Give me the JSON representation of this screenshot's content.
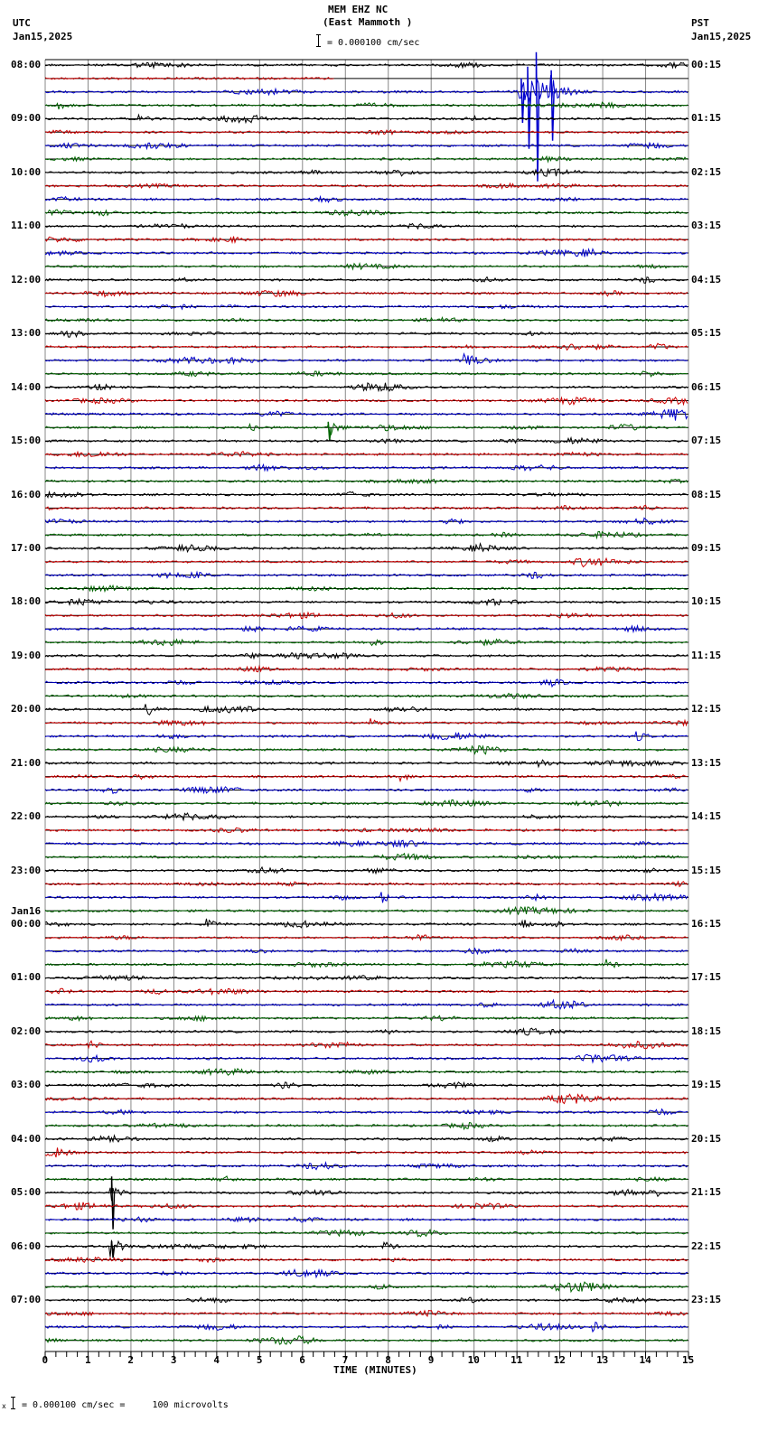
{
  "header": {
    "station": "MEM EHZ NC",
    "location": "(East Mammoth )",
    "scale_text": "= 0.000100 cm/sec",
    "left_tz": "UTC",
    "left_date": "Jan15,2025",
    "right_tz": "PST",
    "right_date": "Jan15,2025"
  },
  "footer": {
    "scale_prefix": "x",
    "scale_text": "= 0.000100 cm/sec =     100 microvolts"
  },
  "colors": {
    "trace_cycle": [
      "#000000",
      "#cc0000",
      "#0000cc",
      "#006600"
    ],
    "grid": "#888888",
    "baseline": "#000000"
  },
  "chart_data": {
    "type": "line",
    "title": "MEM EHZ NC (East Mammoth )",
    "subtitle": "= 0.000100 cm/sec",
    "xlabel": "TIME (MINUTES)",
    "ylabel": "",
    "xlim": [
      0,
      15
    ],
    "x_ticks": [
      "0",
      "1",
      "2",
      "3",
      "4",
      "5",
      "6",
      "7",
      "8",
      "9",
      "10",
      "11",
      "12",
      "13",
      "14",
      "15"
    ],
    "minor_ticks_per_minute": 4,
    "grid": true,
    "traces_per_hour": 4,
    "trace_minutes": 15,
    "num_traces": 96,
    "left_hour_labels": [
      {
        "row": 0,
        "label": "08:00"
      },
      {
        "row": 4,
        "label": "09:00"
      },
      {
        "row": 8,
        "label": "10:00"
      },
      {
        "row": 12,
        "label": "11:00"
      },
      {
        "row": 16,
        "label": "12:00"
      },
      {
        "row": 20,
        "label": "13:00"
      },
      {
        "row": 24,
        "label": "14:00"
      },
      {
        "row": 28,
        "label": "15:00"
      },
      {
        "row": 32,
        "label": "16:00"
      },
      {
        "row": 36,
        "label": "17:00"
      },
      {
        "row": 40,
        "label": "18:00"
      },
      {
        "row": 44,
        "label": "19:00"
      },
      {
        "row": 48,
        "label": "20:00"
      },
      {
        "row": 52,
        "label": "21:00"
      },
      {
        "row": 56,
        "label": "22:00"
      },
      {
        "row": 60,
        "label": "23:00"
      },
      {
        "row": 64,
        "label": "00:00",
        "date": "Jan16"
      },
      {
        "row": 68,
        "label": "01:00"
      },
      {
        "row": 72,
        "label": "02:00"
      },
      {
        "row": 76,
        "label": "03:00"
      },
      {
        "row": 80,
        "label": "04:00"
      },
      {
        "row": 84,
        "label": "05:00"
      },
      {
        "row": 88,
        "label": "06:00"
      },
      {
        "row": 92,
        "label": "07:00"
      }
    ],
    "right_hour_labels": [
      {
        "row": 0,
        "label": "00:15"
      },
      {
        "row": 4,
        "label": "01:15"
      },
      {
        "row": 8,
        "label": "02:15"
      },
      {
        "row": 12,
        "label": "03:15"
      },
      {
        "row": 16,
        "label": "04:15"
      },
      {
        "row": 20,
        "label": "05:15"
      },
      {
        "row": 24,
        "label": "06:15"
      },
      {
        "row": 28,
        "label": "07:15"
      },
      {
        "row": 32,
        "label": "08:15"
      },
      {
        "row": 36,
        "label": "09:15"
      },
      {
        "row": 40,
        "label": "10:15"
      },
      {
        "row": 44,
        "label": "11:15"
      },
      {
        "row": 48,
        "label": "12:15"
      },
      {
        "row": 52,
        "label": "13:15"
      },
      {
        "row": 56,
        "label": "14:15"
      },
      {
        "row": 60,
        "label": "15:15"
      },
      {
        "row": 64,
        "label": "16:15"
      },
      {
        "row": 68,
        "label": "17:15"
      },
      {
        "row": 72,
        "label": "18:15"
      },
      {
        "row": 76,
        "label": "19:15"
      },
      {
        "row": 80,
        "label": "20:15"
      },
      {
        "row": 84,
        "label": "21:15"
      },
      {
        "row": 88,
        "label": "22:15"
      },
      {
        "row": 92,
        "label": "23:15"
      }
    ],
    "data_gap": {
      "row": 1,
      "from_minute": 6.75,
      "note": "row 1 trace ends ~6.75 min, flat thereafter"
    },
    "events": [
      {
        "row": 2,
        "minute": 11.1,
        "amp": 38,
        "note": "large spike train crossing rows 2-12 (blue clipped pulses)"
      },
      {
        "row": 2,
        "minute": 11.25,
        "amp": 70
      },
      {
        "row": 2,
        "minute": 11.45,
        "amp": 110
      },
      {
        "row": 2,
        "minute": 11.8,
        "amp": 60
      },
      {
        "row": 3,
        "minute": 0.3,
        "amp": 4
      },
      {
        "row": 4,
        "minute": 2.2,
        "amp": 5
      },
      {
        "row": 22,
        "minute": 9.8,
        "amp": 7
      },
      {
        "row": 27,
        "minute": 6.6,
        "amp": 16,
        "note": "local earthquake"
      },
      {
        "row": 27,
        "minute": 4.8,
        "amp": 5
      },
      {
        "row": 48,
        "minute": 2.35,
        "amp": 8
      },
      {
        "row": 49,
        "minute": 7.6,
        "amp": 6
      },
      {
        "row": 50,
        "minute": 13.8,
        "amp": 5
      },
      {
        "row": 52,
        "minute": 11.5,
        "amp": 5
      },
      {
        "row": 53,
        "minute": 8.3,
        "amp": 5
      },
      {
        "row": 54,
        "minute": 11.2,
        "amp": 5
      },
      {
        "row": 62,
        "minute": 7.85,
        "amp": 6
      },
      {
        "row": 64,
        "minute": 3.8,
        "amp": 5
      },
      {
        "row": 64,
        "minute": 11.15,
        "amp": 5
      },
      {
        "row": 67,
        "minute": 13.1,
        "amp": 6
      },
      {
        "row": 73,
        "minute": 1.0,
        "amp": 6
      },
      {
        "row": 84,
        "minute": 1.55,
        "amp": 45,
        "note": "tall black spike spanning rows 84-88"
      },
      {
        "row": 88,
        "minute": 1.55,
        "amp": 14
      },
      {
        "row": 88,
        "minute": 7.9,
        "amp": 5
      },
      {
        "row": 94,
        "minute": 12.8,
        "amp": 6
      }
    ]
  }
}
